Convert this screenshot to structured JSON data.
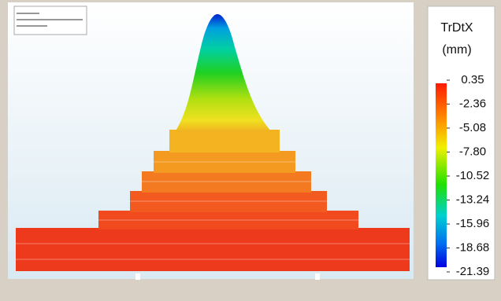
{
  "legend": {
    "title": "TrDtX",
    "unit": "(mm)",
    "ticks": [
      0.35,
      -2.36,
      -5.08,
      {
        "value": -7.8,
        "label": "-7.80"
      },
      -10.52,
      -13.24,
      -15.96,
      -18.68,
      -21.39
    ]
  }
}
